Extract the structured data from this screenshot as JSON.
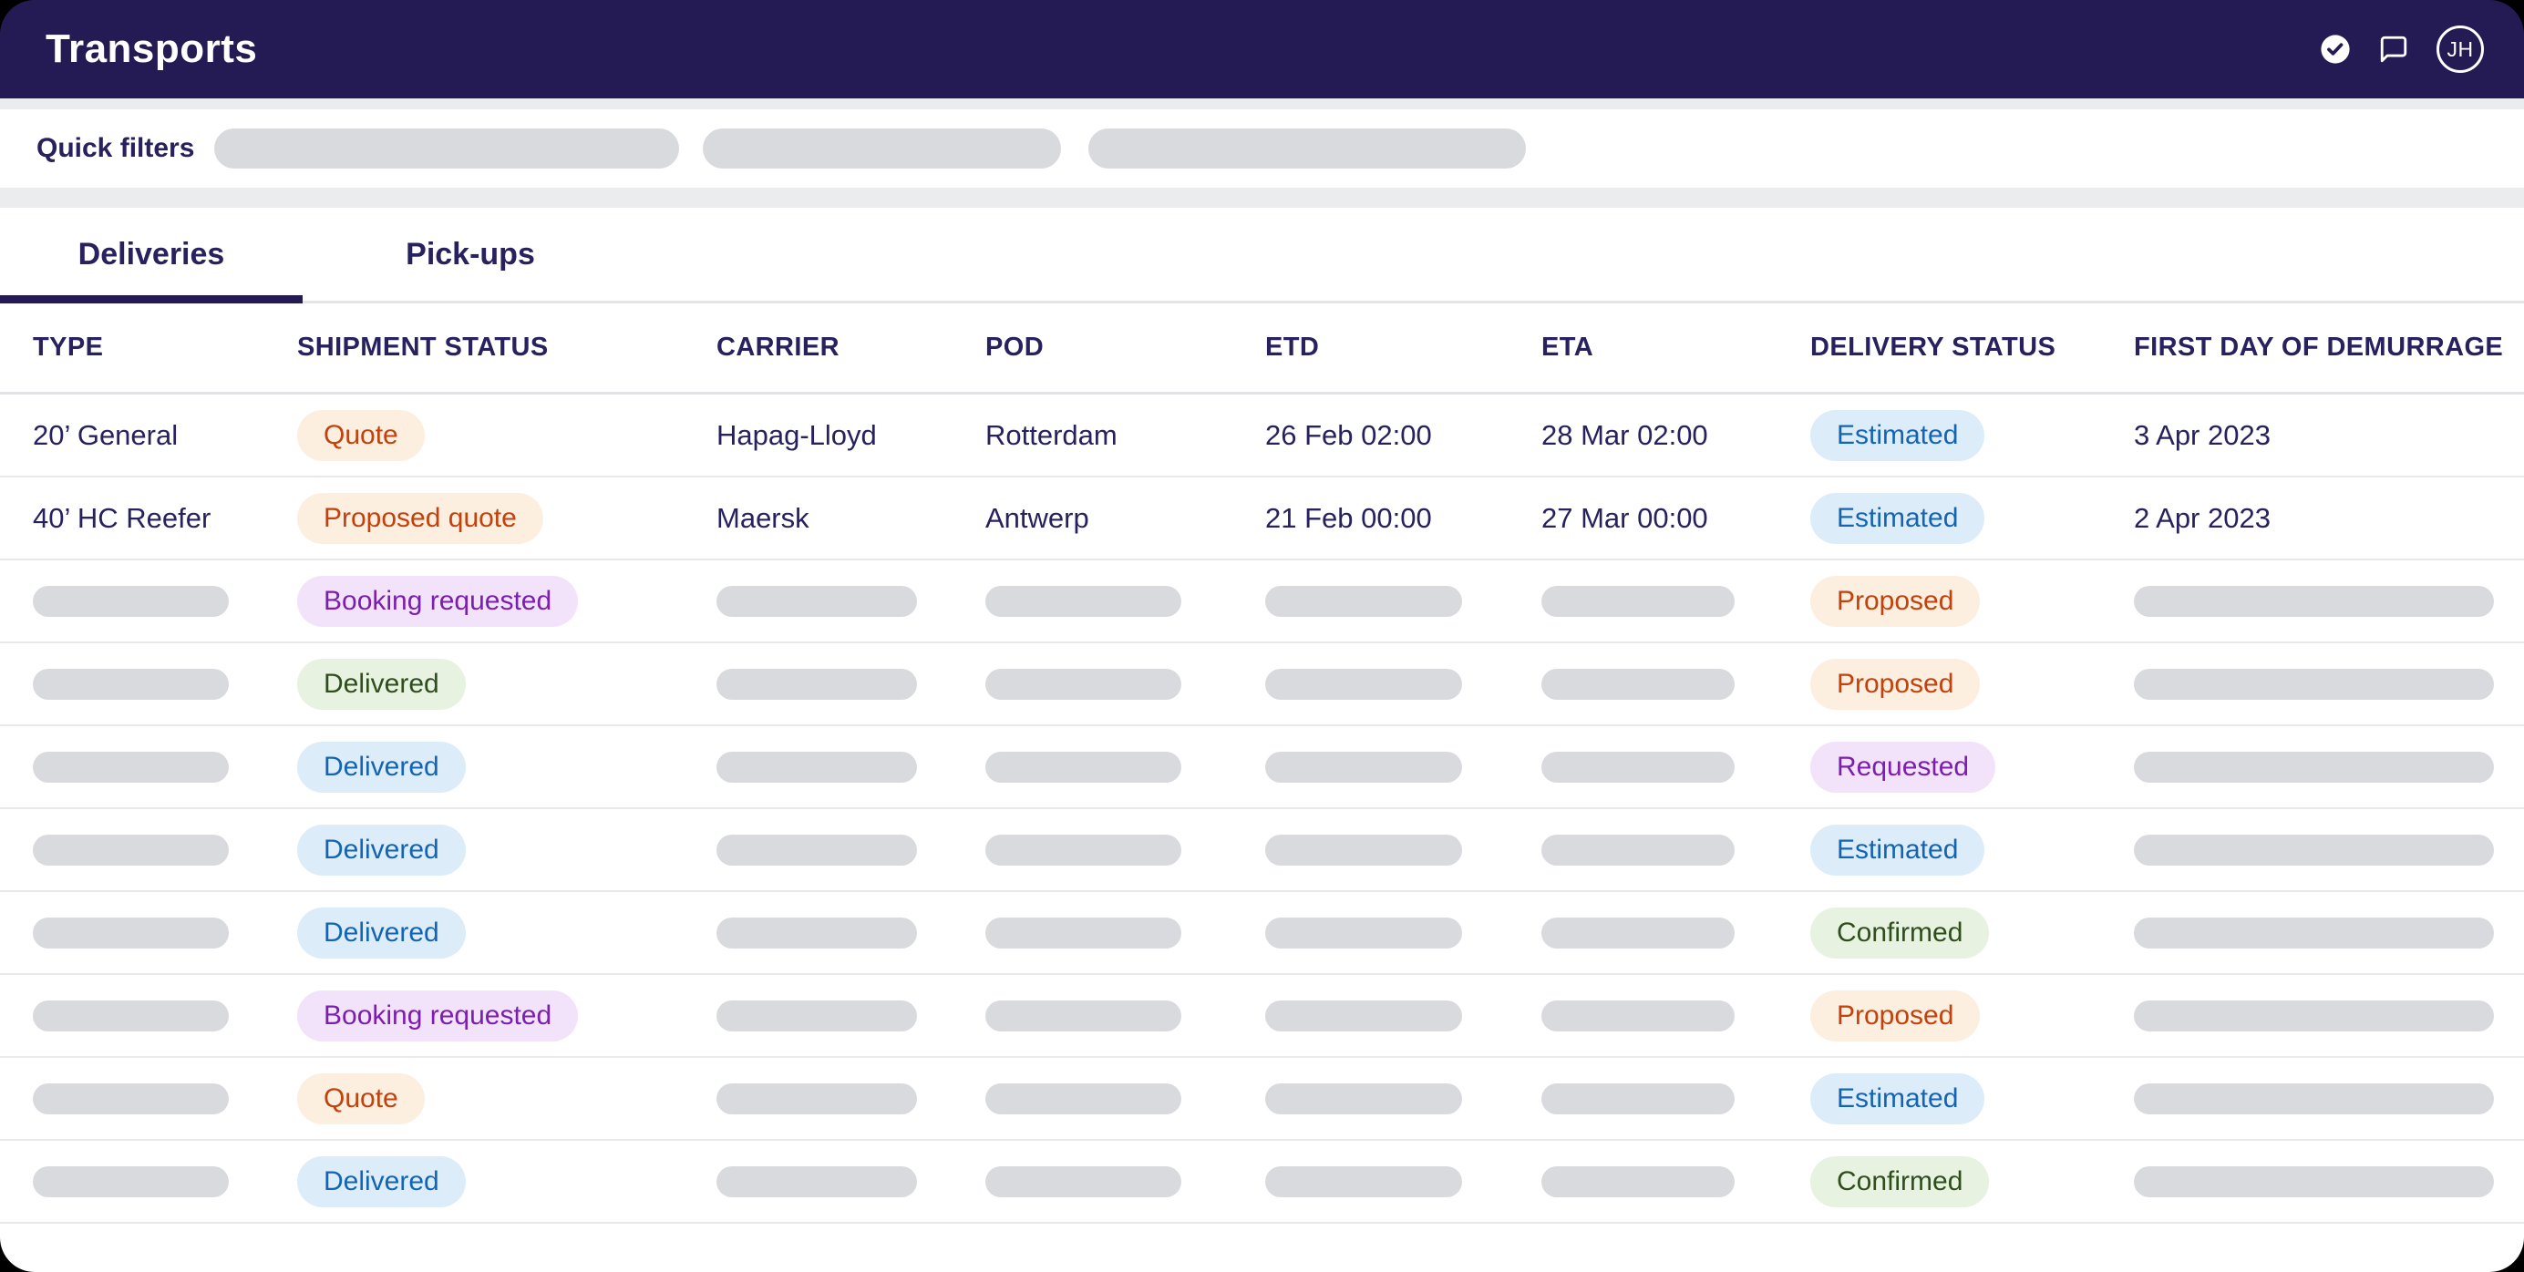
{
  "header": {
    "title": "Transports",
    "avatar_initials": "JH",
    "icons": [
      "check-circle-icon",
      "chat-bubble-icon",
      "avatar"
    ]
  },
  "quick_filters": {
    "label": "Quick filters",
    "placeholder_count": 3
  },
  "tabs": [
    {
      "label": "Deliveries",
      "active": true
    },
    {
      "label": "Pick-ups",
      "active": false
    }
  ],
  "table": {
    "columns": [
      "TYPE",
      "SHIPMENT STATUS",
      "CARRIER",
      "POD",
      "ETD",
      "ETA",
      "DELIVERY STATUS",
      "FIRST DAY OF DEMURRAGE"
    ],
    "rows": [
      {
        "type": "20’ General",
        "shipment_status": {
          "label": "Quote",
          "variant": "orange"
        },
        "carrier": "Hapag-Lloyd",
        "pod": "Rotterdam",
        "etd": "26 Feb 02:00",
        "eta": "28 Mar 02:00",
        "delivery_status": {
          "label": "Estimated",
          "variant": "blue"
        },
        "first_day_of_demurrage": "3 Apr 2023"
      },
      {
        "type": "40’ HC Reefer",
        "shipment_status": {
          "label": "Proposed quote",
          "variant": "orange"
        },
        "carrier": "Maersk",
        "pod": "Antwerp",
        "etd": "21 Feb 00:00",
        "eta": "27 Mar 00:00",
        "delivery_status": {
          "label": "Estimated",
          "variant": "blue"
        },
        "first_day_of_demurrage": "2 Apr 2023"
      },
      {
        "type": null,
        "shipment_status": {
          "label": "Booking requested",
          "variant": "purple"
        },
        "carrier": null,
        "pod": null,
        "etd": null,
        "eta": null,
        "delivery_status": {
          "label": "Proposed",
          "variant": "orange"
        },
        "first_day_of_demurrage": null
      },
      {
        "type": null,
        "shipment_status": {
          "label": "Delivered",
          "variant": "green"
        },
        "carrier": null,
        "pod": null,
        "etd": null,
        "eta": null,
        "delivery_status": {
          "label": "Proposed",
          "variant": "orange"
        },
        "first_day_of_demurrage": null
      },
      {
        "type": null,
        "shipment_status": {
          "label": "Delivered",
          "variant": "blue"
        },
        "carrier": null,
        "pod": null,
        "etd": null,
        "eta": null,
        "delivery_status": {
          "label": "Requested",
          "variant": "purple"
        },
        "first_day_of_demurrage": null
      },
      {
        "type": null,
        "shipment_status": {
          "label": "Delivered",
          "variant": "blue"
        },
        "carrier": null,
        "pod": null,
        "etd": null,
        "eta": null,
        "delivery_status": {
          "label": "Estimated",
          "variant": "blue"
        },
        "first_day_of_demurrage": null
      },
      {
        "type": null,
        "shipment_status": {
          "label": "Delivered",
          "variant": "blue"
        },
        "carrier": null,
        "pod": null,
        "etd": null,
        "eta": null,
        "delivery_status": {
          "label": "Confirmed",
          "variant": "green"
        },
        "first_day_of_demurrage": null
      },
      {
        "type": null,
        "shipment_status": {
          "label": "Booking requested",
          "variant": "purple"
        },
        "carrier": null,
        "pod": null,
        "etd": null,
        "eta": null,
        "delivery_status": {
          "label": "Proposed",
          "variant": "orange"
        },
        "first_day_of_demurrage": null
      },
      {
        "type": null,
        "shipment_status": {
          "label": "Quote",
          "variant": "orange"
        },
        "carrier": null,
        "pod": null,
        "etd": null,
        "eta": null,
        "delivery_status": {
          "label": "Estimated",
          "variant": "blue"
        },
        "first_day_of_demurrage": null
      },
      {
        "type": null,
        "shipment_status": {
          "label": "Delivered",
          "variant": "blue"
        },
        "carrier": null,
        "pod": null,
        "etd": null,
        "eta": null,
        "delivery_status": {
          "label": "Confirmed",
          "variant": "green"
        },
        "first_day_of_demurrage": null
      }
    ]
  },
  "colors": {
    "header_bg": "#241b55",
    "text_navy": "#27215e",
    "badge_orange_text": "#c2410c",
    "badge_orange_bg": "#fcefe0",
    "badge_blue_text": "#1464b4",
    "badge_blue_bg": "#dcedf9",
    "badge_green_text": "#2f4e1c",
    "badge_green_bg": "#e7f2e1",
    "badge_purple_text": "#7a1fae",
    "badge_purple_bg": "#f2e3fa",
    "placeholder_gray": "#d9dade"
  }
}
